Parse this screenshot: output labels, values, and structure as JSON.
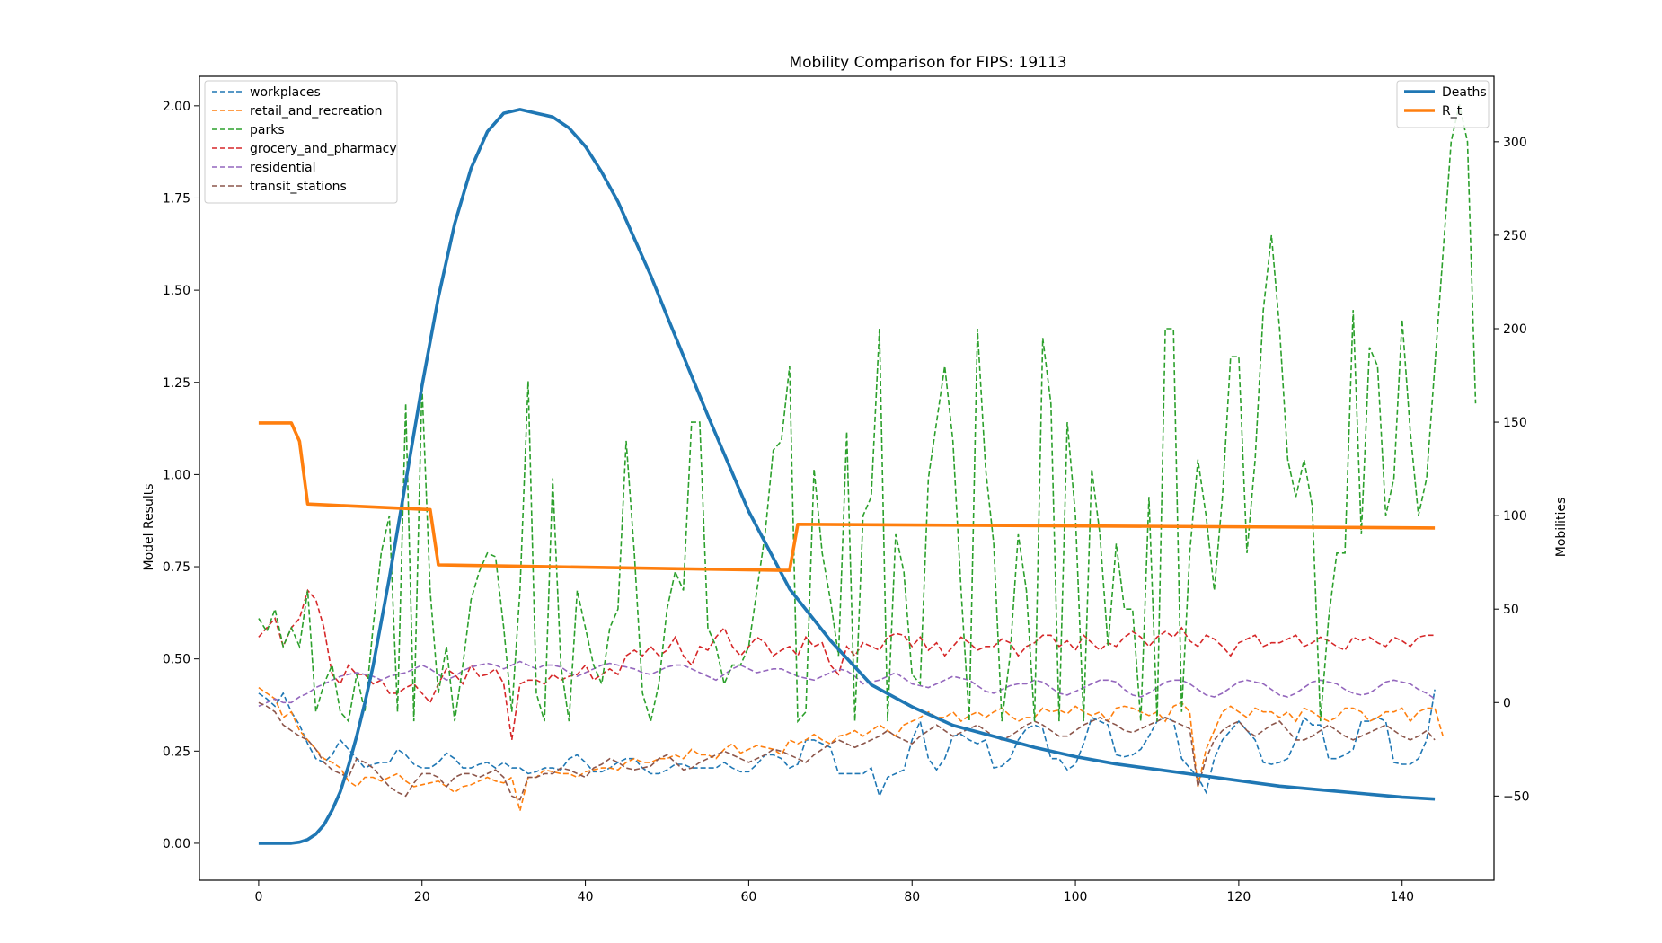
{
  "chart_data": {
    "type": "line",
    "title": "Mobility Comparison for FIPS: 19113",
    "xlabel": "",
    "ylabel": "Model Results",
    "y2label": "Mobilities",
    "xlim": [
      -7.25,
      151.25
    ],
    "ylim": [
      -0.1,
      2.08
    ],
    "y2lim": [
      -95,
      335
    ],
    "xticks": [
      0,
      20,
      40,
      60,
      80,
      100,
      120,
      140
    ],
    "yticks": [
      0.0,
      0.25,
      0.5,
      0.75,
      1.0,
      1.25,
      1.5,
      1.75,
      2.0
    ],
    "ytick_labels": [
      "0.00",
      "0.25",
      "0.50",
      "0.75",
      "1.00",
      "1.25",
      "1.50",
      "1.75",
      "2.00"
    ],
    "y2ticks": [
      -50,
      0,
      50,
      100,
      150,
      200,
      250,
      300
    ],
    "y2tick_labels": [
      "−50",
      "0",
      "50",
      "100",
      "150",
      "200",
      "250",
      "300"
    ],
    "legend_left_position": "upper-left",
    "legend_right_position": "upper-right",
    "primary_series": [
      {
        "name": "Deaths",
        "color": "#1f77b4",
        "x": [
          0,
          4,
          5,
          6,
          7,
          8,
          9,
          10,
          11,
          12,
          13,
          14,
          15,
          16,
          18,
          20,
          22,
          24,
          26,
          28,
          30,
          32,
          34,
          35,
          36,
          38,
          40,
          42,
          44,
          46,
          48,
          50,
          55,
          60,
          65,
          70,
          75,
          80,
          85,
          90,
          95,
          100,
          105,
          110,
          115,
          120,
          125,
          130,
          135,
          140,
          144
        ],
        "y": [
          0,
          0,
          0.003,
          0.01,
          0.025,
          0.05,
          0.09,
          0.14,
          0.21,
          0.29,
          0.38,
          0.48,
          0.6,
          0.72,
          0.98,
          1.24,
          1.48,
          1.68,
          1.83,
          1.93,
          1.98,
          1.99,
          1.98,
          1.975,
          1.97,
          1.94,
          1.89,
          1.82,
          1.74,
          1.64,
          1.54,
          1.43,
          1.16,
          0.9,
          0.69,
          0.55,
          0.43,
          0.37,
          0.32,
          0.29,
          0.26,
          0.235,
          0.215,
          0.2,
          0.185,
          0.17,
          0.155,
          0.145,
          0.135,
          0.125,
          0.12
        ]
      },
      {
        "name": "R_t",
        "color": "#ff7f0e",
        "x": [
          0,
          4,
          5,
          6,
          21,
          22,
          64,
          65,
          66,
          144
        ],
        "y": [
          1.14,
          1.14,
          1.09,
          0.92,
          0.905,
          0.755,
          0.74,
          0.74,
          0.865,
          0.855
        ]
      }
    ],
    "secondary_series": [
      {
        "name": "workplaces",
        "color": "#1f77b4",
        "y": [
          5,
          2,
          -2,
          5,
          -5,
          -12,
          -22,
          -30,
          -32,
          -28,
          -20,
          -25,
          -30,
          -35,
          -33,
          -32,
          -32,
          -25,
          -28,
          -33,
          -35,
          -35,
          -32,
          -27,
          -30,
          -35,
          -35,
          -33,
          -32,
          -35,
          -32,
          -35,
          -35,
          -38,
          -37,
          -35,
          -35,
          -36,
          -30,
          -28,
          -32,
          -37,
          -37,
          -35,
          -32,
          -30,
          -30,
          -35,
          -38,
          -38,
          -36,
          -33,
          -33,
          -35,
          -35,
          -35,
          -35,
          -32,
          -35,
          -37,
          -37,
          -33,
          -28,
          -28,
          -30,
          -35,
          -33,
          -20,
          -20,
          -22,
          -24,
          -38,
          -38,
          -38,
          -38,
          -35,
          -50,
          -40,
          -38,
          -36,
          -20,
          -10,
          -30,
          -36,
          -30,
          -18,
          -17,
          -20,
          -22,
          -20,
          -35,
          -34,
          -30,
          -20,
          -14,
          -12,
          -14,
          -30,
          -30,
          -36,
          -33,
          -22,
          -8,
          -10,
          -12,
          -28,
          -29,
          -28,
          -25,
          -18,
          -10,
          -8,
          -10,
          -30,
          -35,
          -40,
          -48,
          -30,
          -20,
          -15,
          -10,
          -15,
          -20,
          -32,
          -33,
          -32,
          -30,
          -20,
          -8,
          -12,
          -12,
          -30,
          -30,
          -28,
          -25,
          -10,
          -10,
          -8,
          -10,
          -32,
          -33,
          -33,
          -30,
          -20,
          7
        ]
      },
      {
        "name": "retail_and_recreation",
        "color": "#ff7f0e",
        "y": [
          8,
          5,
          2,
          -8,
          -5,
          -15,
          -20,
          -25,
          -30,
          -32,
          -35,
          -42,
          -45,
          -40,
          -40,
          -42,
          -40,
          -38,
          -42,
          -45,
          -44,
          -43,
          -42,
          -45,
          -48,
          -45,
          -44,
          -42,
          -40,
          -42,
          -43,
          -40,
          -58,
          -40,
          -40,
          -36,
          -37,
          -38,
          -38,
          -40,
          -37,
          -36,
          -35,
          -35,
          -36,
          -32,
          -30,
          -32,
          -32,
          -30,
          -30,
          -28,
          -30,
          -25,
          -28,
          -28,
          -30,
          -25,
          -22,
          -27,
          -25,
          -23,
          -24,
          -25,
          -28,
          -20,
          -22,
          -20,
          -17,
          -20,
          -22,
          -18,
          -17,
          -15,
          -18,
          -15,
          -12,
          -15,
          -18,
          -12,
          -10,
          -8,
          -5,
          -8,
          -8,
          -5,
          -10,
          -7,
          -5,
          -8,
          -5,
          -3,
          -7,
          -10,
          -8,
          -8,
          -3,
          -5,
          -4,
          -6,
          -2,
          -5,
          -7,
          -5,
          -10,
          -3,
          -2,
          -3,
          -5,
          -7,
          -5,
          -10,
          -2,
          0,
          -5,
          -45,
          -25,
          -15,
          -5,
          -2,
          -5,
          -8,
          -3,
          -5,
          -5,
          -8,
          -5,
          -10,
          -3,
          -5,
          -8,
          -10,
          -8,
          -3,
          -3,
          -5,
          -10,
          -8,
          -5,
          -5,
          -3,
          -10,
          -5,
          -3,
          -3,
          -18
        ]
      },
      {
        "name": "grocery_and_pharmacy",
        "color": "#d62728",
        "y": [
          35,
          40,
          45,
          30,
          40,
          45,
          60,
          55,
          40,
          15,
          10,
          20,
          15,
          15,
          10,
          12,
          5,
          5,
          8,
          10,
          5,
          0,
          10,
          18,
          15,
          10,
          20,
          14,
          15,
          18,
          10,
          -20,
          10,
          12,
          12,
          10,
          15,
          12,
          14,
          15,
          20,
          12,
          15,
          18,
          15,
          25,
          28,
          25,
          30,
          25,
          28,
          35,
          25,
          20,
          30,
          28,
          35,
          40,
          30,
          25,
          30,
          35,
          32,
          25,
          28,
          30,
          25,
          35,
          30,
          32,
          20,
          15,
          30,
          25,
          32,
          30,
          28,
          35,
          37,
          36,
          30,
          35,
          28,
          32,
          25,
          30,
          35,
          32,
          28,
          30,
          30,
          34,
          32,
          25,
          30,
          32,
          36,
          36,
          30,
          33,
          28,
          36,
          32,
          28,
          32,
          30,
          35,
          38,
          35,
          30,
          35,
          38,
          35,
          40,
          33,
          30,
          36,
          34,
          30,
          25,
          32,
          34,
          36,
          30,
          32,
          32,
          34,
          36,
          30,
          32,
          35,
          33,
          30,
          28,
          35,
          33,
          35,
          32,
          30,
          35,
          33,
          30,
          35,
          36,
          36
        ]
      },
      {
        "name": "residential",
        "color": "#9467bd",
        "y": [
          -2,
          0,
          2,
          0,
          0,
          3,
          5,
          8,
          10,
          12,
          14,
          15,
          16,
          15,
          14,
          12,
          14,
          15,
          16,
          18,
          20,
          18,
          15,
          12,
          14,
          17,
          19,
          20,
          21,
          20,
          18,
          20,
          22,
          20,
          18,
          20,
          20,
          19,
          16,
          14,
          16,
          18,
          20,
          21,
          20,
          19,
          18,
          16,
          15,
          17,
          19,
          20,
          20,
          18,
          16,
          14,
          12,
          15,
          18,
          20,
          18,
          16,
          17,
          18,
          18,
          16,
          14,
          13,
          12,
          14,
          16,
          18,
          17,
          14,
          10,
          11,
          12,
          14,
          16,
          13,
          10,
          9,
          8,
          10,
          12,
          14,
          13,
          12,
          9,
          6,
          5,
          7,
          9,
          10,
          10,
          12,
          11,
          8,
          5,
          4,
          6,
          8,
          10,
          12,
          12,
          11,
          7,
          4,
          3,
          5,
          8,
          11,
          12,
          12,
          10,
          7,
          4,
          3,
          5,
          8,
          11,
          12,
          11,
          10,
          7,
          4,
          3,
          5,
          8,
          11,
          12,
          11,
          10,
          7,
          5,
          4,
          5,
          8,
          11,
          12,
          11,
          10,
          7,
          5,
          2
        ]
      },
      {
        "name": "transit_stations",
        "color": "#8c564b",
        "y": [
          0,
          -2,
          -5,
          -12,
          -15,
          -18,
          -20,
          -25,
          -32,
          -36,
          -38,
          -40,
          -30,
          -32,
          -35,
          -40,
          -45,
          -48,
          -50,
          -43,
          -38,
          -38,
          -40,
          -45,
          -40,
          -38,
          -38,
          -40,
          -38,
          -36,
          -40,
          -50,
          -52,
          -40,
          -40,
          -38,
          -38,
          -35,
          -36,
          -38,
          -40,
          -35,
          -33,
          -30,
          -32,
          -35,
          -36,
          -35,
          -34,
          -30,
          -28,
          -32,
          -36,
          -35,
          -32,
          -30,
          -28,
          -26,
          -28,
          -30,
          -32,
          -30,
          -28,
          -25,
          -26,
          -28,
          -30,
          -32,
          -28,
          -25,
          -22,
          -20,
          -22,
          -24,
          -22,
          -20,
          -18,
          -15,
          -18,
          -20,
          -22,
          -18,
          -15,
          -12,
          -15,
          -18,
          -16,
          -14,
          -12,
          -15,
          -18,
          -20,
          -18,
          -15,
          -12,
          -10,
          -12,
          -15,
          -18,
          -18,
          -15,
          -12,
          -10,
          -8,
          -10,
          -12,
          -15,
          -16,
          -14,
          -12,
          -10,
          -8,
          -10,
          -12,
          -14,
          -45,
          -30,
          -20,
          -15,
          -12,
          -10,
          -15,
          -18,
          -15,
          -12,
          -10,
          -15,
          -20,
          -20,
          -18,
          -15,
          -12,
          -15,
          -18,
          -20,
          -18,
          -16,
          -14,
          -12,
          -15,
          -18,
          -20,
          -18,
          -15,
          -20
        ]
      },
      {
        "name": "parks",
        "color": "#2ca02c",
        "y": [
          45,
          38,
          50,
          30,
          40,
          30,
          60,
          -5,
          10,
          20,
          -5,
          -10,
          15,
          -5,
          40,
          80,
          100,
          -5,
          160,
          -10,
          170,
          60,
          5,
          30,
          -10,
          20,
          55,
          70,
          80,
          78,
          40,
          -5,
          60,
          172,
          5,
          -10,
          120,
          20,
          -10,
          60,
          40,
          20,
          10,
          40,
          50,
          140,
          80,
          5,
          -10,
          10,
          50,
          70,
          60,
          150,
          150,
          40,
          30,
          10,
          20,
          20,
          30,
          60,
          90,
          135,
          140,
          180,
          -10,
          -5,
          125,
          80,
          55,
          25,
          145,
          -10,
          100,
          110,
          200,
          -10,
          90,
          70,
          15,
          10,
          120,
          150,
          180,
          140,
          60,
          -10,
          200,
          125,
          85,
          -10,
          25,
          90,
          60,
          -10,
          195,
          160,
          -10,
          150,
          100,
          -10,
          125,
          90,
          30,
          85,
          50,
          50,
          -10,
          110,
          -10,
          200,
          200,
          -5,
          80,
          130,
          100,
          60,
          110,
          185,
          185,
          80,
          130,
          210,
          250,
          200,
          130,
          110,
          130,
          105,
          -10,
          45,
          80,
          80,
          210,
          90,
          190,
          180,
          100,
          120,
          205,
          145,
          100,
          120,
          180,
          240,
          300,
          320,
          300,
          160
        ]
      }
    ]
  }
}
